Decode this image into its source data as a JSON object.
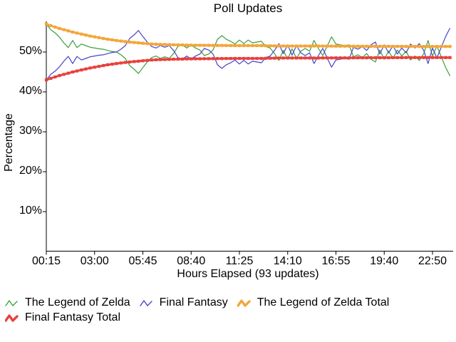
{
  "title": "Poll Updates",
  "axes": {
    "y_label": "Percentage",
    "x_label": "Hours Elapsed (93 updates)"
  },
  "colors": {
    "zelda": "#3aa03a",
    "final_fantasy": "#4444cc",
    "zelda_total": "#f3a63b",
    "final_fantasy_total": "#e8413c",
    "axis": "#000000",
    "background": "#ffffff"
  },
  "chart_data": {
    "type": "line",
    "title": "Poll Updates",
    "xlabel": "Hours Elapsed (93 updates)",
    "ylabel": "Percentage",
    "x_unit": "poll update index (one point per update, 93 updates)",
    "ylim": [
      0,
      58
    ],
    "grid": false,
    "legend_position": "bottom-left",
    "y_ticks": {
      "values": [
        10,
        20,
        30,
        40,
        50
      ],
      "labels": [
        "10%",
        "20%",
        "30%",
        "40%",
        "50%"
      ]
    },
    "x_ticks": {
      "labels": [
        "00:15",
        "03:00",
        "05:45",
        "08:40",
        "11:25",
        "14:10",
        "16:55",
        "19:40",
        "22:50"
      ],
      "update_indices": [
        0,
        11,
        22,
        33,
        44,
        55,
        66,
        77,
        88
      ]
    },
    "series": [
      {
        "name": "The Legend of Zelda",
        "color": "#3aa03a",
        "style": "thin",
        "values": [
          57.0,
          55.6,
          54.8,
          53.7,
          52.3,
          51.1,
          52.9,
          51.1,
          52.0,
          51.6,
          51.2,
          51.0,
          50.8,
          50.7,
          50.4,
          50.1,
          50.0,
          49.3,
          48.4,
          46.6,
          45.7,
          44.6,
          46.1,
          47.5,
          48.6,
          49.0,
          48.4,
          48.8,
          48.4,
          49.6,
          51.4,
          51.8,
          51.0,
          51.8,
          51.0,
          50.5,
          49.1,
          49.5,
          50.5,
          53.2,
          54.1,
          53.2,
          52.7,
          52.0,
          53.0,
          52.1,
          53.0,
          52.3,
          52.5,
          52.7,
          51.4,
          51.0,
          49.6,
          47.9,
          50.4,
          48.2,
          50.8,
          48.4,
          50.2,
          50.9,
          50.2,
          52.9,
          50.9,
          49.1,
          51.5,
          53.8,
          52.0,
          51.8,
          51.6,
          51.8,
          48.8,
          49.3,
          48.6,
          49.6,
          48.2,
          47.5,
          50.5,
          48.2,
          50.2,
          48.4,
          50.5,
          49.0,
          50.2,
          48.0,
          49.0,
          47.9,
          49.6,
          52.9,
          49.0,
          51.5,
          48.8,
          46.1,
          44.0
        ]
      },
      {
        "name": "Final Fantasy",
        "color": "#4444cc",
        "style": "thin",
        "values": [
          43.0,
          44.4,
          45.2,
          46.3,
          47.7,
          48.9,
          47.1,
          48.9,
          48.0,
          48.4,
          48.8,
          49.0,
          49.2,
          49.3,
          49.6,
          49.9,
          50.0,
          50.7,
          51.6,
          53.4,
          54.3,
          55.4,
          53.9,
          52.5,
          51.4,
          51.0,
          51.6,
          51.2,
          51.6,
          50.4,
          48.6,
          48.2,
          49.0,
          48.2,
          49.0,
          49.5,
          50.9,
          50.5,
          49.5,
          46.8,
          45.9,
          46.8,
          47.3,
          48.0,
          47.0,
          47.9,
          47.0,
          47.7,
          47.5,
          47.3,
          48.6,
          49.0,
          50.4,
          52.1,
          49.6,
          51.8,
          49.2,
          51.6,
          49.8,
          49.1,
          49.8,
          47.1,
          49.1,
          50.9,
          48.5,
          46.2,
          48.0,
          48.2,
          48.4,
          48.2,
          51.2,
          50.7,
          51.4,
          50.4,
          51.8,
          52.5,
          49.5,
          51.8,
          49.8,
          51.6,
          49.5,
          51.0,
          49.8,
          52.0,
          51.0,
          52.1,
          50.4,
          47.1,
          51.0,
          48.5,
          51.2,
          53.9,
          56.0
        ]
      },
      {
        "name": "The Legend of Zelda Total",
        "color": "#f3a63b",
        "style": "thick",
        "values": [
          57.0,
          56.6,
          56.25,
          55.9,
          55.6,
          55.3,
          55.0,
          54.75,
          54.5,
          54.25,
          54.0,
          53.8,
          53.6,
          53.4,
          53.2,
          53.05,
          52.9,
          52.75,
          52.6,
          52.5,
          52.4,
          52.3,
          52.2,
          52.1,
          52.0,
          51.95,
          51.9,
          51.87,
          51.84,
          51.8,
          51.78,
          51.76,
          51.74,
          51.72,
          51.7,
          51.69,
          51.68,
          51.67,
          51.66,
          51.65,
          51.64,
          51.63,
          51.62,
          51.61,
          51.6,
          51.6,
          51.6,
          51.6,
          51.6,
          51.6,
          51.58,
          51.56,
          51.54,
          51.52,
          51.5,
          51.5,
          51.5,
          51.5,
          51.5,
          51.5,
          51.5,
          51.5,
          51.5,
          51.48,
          51.48,
          51.48,
          51.47,
          51.47,
          51.46,
          51.46,
          51.45,
          51.45,
          51.44,
          51.44,
          51.43,
          51.43,
          51.42,
          51.42,
          51.42,
          51.41,
          51.41,
          51.41,
          51.4,
          51.4,
          51.4,
          51.4,
          51.4,
          51.4,
          51.4,
          51.4,
          51.4,
          51.4,
          51.4
        ]
      },
      {
        "name": "Final Fantasy Total",
        "color": "#e8413c",
        "style": "thick",
        "values": [
          43.0,
          43.4,
          43.75,
          44.1,
          44.4,
          44.7,
          45.0,
          45.25,
          45.5,
          45.75,
          46.0,
          46.2,
          46.4,
          46.6,
          46.8,
          46.95,
          47.1,
          47.25,
          47.4,
          47.5,
          47.6,
          47.7,
          47.8,
          47.9,
          48.0,
          48.05,
          48.1,
          48.13,
          48.16,
          48.2,
          48.22,
          48.24,
          48.26,
          48.28,
          48.3,
          48.31,
          48.32,
          48.33,
          48.34,
          48.35,
          48.36,
          48.37,
          48.38,
          48.39,
          48.4,
          48.4,
          48.4,
          48.4,
          48.4,
          48.4,
          48.42,
          48.44,
          48.46,
          48.48,
          48.5,
          48.5,
          48.5,
          48.5,
          48.5,
          48.5,
          48.5,
          48.5,
          48.5,
          48.52,
          48.52,
          48.52,
          48.53,
          48.53,
          48.54,
          48.54,
          48.55,
          48.55,
          48.56,
          48.56,
          48.57,
          48.57,
          48.58,
          48.58,
          48.58,
          48.59,
          48.59,
          48.59,
          48.6,
          48.6,
          48.6,
          48.6,
          48.6,
          48.6,
          48.6,
          48.6,
          48.6,
          48.6,
          48.6
        ]
      }
    ]
  },
  "legend": {
    "icon_names": [
      "zelda-line-icon",
      "final-fantasy-line-icon",
      "zelda-total-line-icon",
      "final-fantasy-total-line-icon"
    ]
  }
}
